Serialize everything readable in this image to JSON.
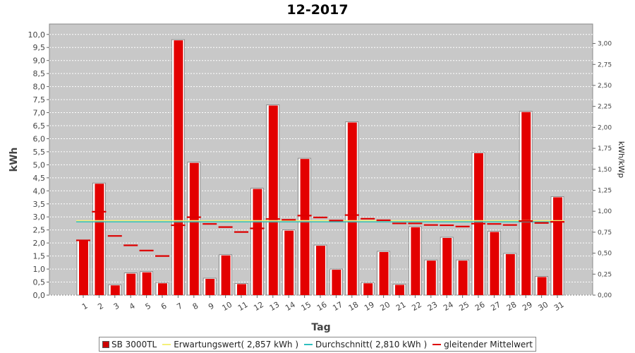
{
  "colors": {
    "bar": "#e30000",
    "expected": "#f5f07a",
    "average": "#2fbfbf",
    "moving": "#dd0000",
    "plot_bg": "#c8c8c8"
  },
  "chart_data": {
    "type": "bar",
    "title": "12-2017",
    "xlabel": "Tag",
    "ylabel": "kWh",
    "ylabel_right": "kWh/kWp",
    "ylim": [
      0,
      10.4
    ],
    "ylim_right": [
      0,
      3.232
    ],
    "yticks": [
      "0,0",
      "0,5",
      "1,0",
      "1,5",
      "2,0",
      "2,5",
      "3,0",
      "3,5",
      "4,0",
      "4,5",
      "5,0",
      "5,5",
      "6,0",
      "6,5",
      "7,0",
      "7,5",
      "8,0",
      "8,5",
      "9,0",
      "9,5",
      "10,0"
    ],
    "yticks_right": [
      "0,00",
      "0,25",
      "0,50",
      "0,75",
      "1,00",
      "1,25",
      "1,50",
      "1,75",
      "2,00",
      "2,25",
      "2,50",
      "2,75",
      "3,00"
    ],
    "categories": [
      "1",
      "2",
      "3",
      "4",
      "5",
      "6",
      "7",
      "8",
      "9",
      "10",
      "11",
      "12",
      "13",
      "14",
      "15",
      "16",
      "17",
      "18",
      "19",
      "20",
      "21",
      "22",
      "23",
      "24",
      "25",
      "26",
      "27",
      "28",
      "29",
      "30",
      "31"
    ],
    "series": [
      {
        "name": "SB 3000TL",
        "type": "bar",
        "values": [
          2.1,
          4.3,
          0.4,
          0.85,
          0.9,
          0.48,
          9.8,
          5.1,
          0.65,
          1.55,
          0.45,
          4.1,
          7.3,
          2.5,
          5.25,
          1.92,
          1.0,
          6.65,
          0.48,
          1.68,
          0.42,
          2.63,
          1.35,
          2.22,
          1.35,
          5.47,
          2.45,
          1.6,
          7.05,
          0.72,
          3.78
        ]
      },
      {
        "name": "Erwartungswert",
        "type": "line",
        "value": 2.857
      },
      {
        "name": "Durchschnitt",
        "type": "line",
        "value": 2.81
      },
      {
        "name": "gleitender Mittelwert",
        "type": "line",
        "values": [
          2.1,
          3.2,
          2.27,
          1.91,
          1.71,
          1.5,
          2.68,
          2.99,
          2.73,
          2.61,
          2.42,
          2.56,
          2.92,
          2.89,
          3.05,
          2.98,
          2.86,
          3.07,
          2.93,
          2.87,
          2.75,
          2.75,
          2.69,
          2.68,
          2.63,
          2.74,
          2.73,
          2.69,
          2.84,
          2.77,
          2.81
        ]
      }
    ]
  },
  "legend": {
    "bar": "SB 3000TL",
    "expected": "Erwartungswert( 2,857 kWh )",
    "average": "Durchschnitt( 2,810 kWh )",
    "moving": "gleitender Mittelwert"
  }
}
